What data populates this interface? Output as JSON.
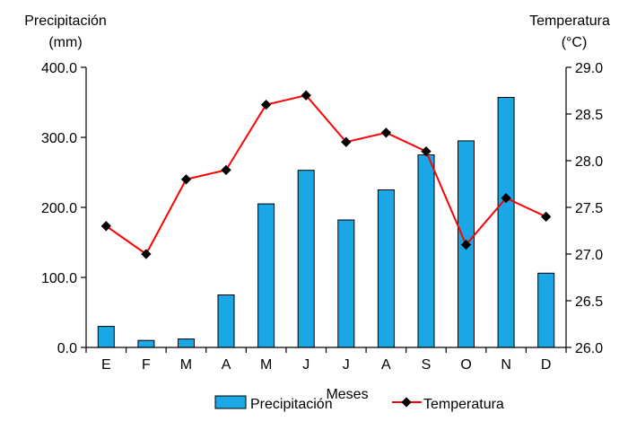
{
  "chart_data": {
    "type": "bar-line",
    "categories": [
      "E",
      "F",
      "M",
      "A",
      "M",
      "J",
      "J",
      "A",
      "S",
      "O",
      "N",
      "D"
    ],
    "xlabel": "Meses",
    "left_axis": {
      "title_line1": "Precipitación",
      "title_line2": "(mm)",
      "ylim": [
        0,
        400
      ],
      "ticks": [
        "0.0",
        "100.0",
        "200.0",
        "300.0",
        "400.0"
      ]
    },
    "right_axis": {
      "title_line1": "Temperatura",
      "title_line2": "(°C)",
      "ylim": [
        26.0,
        29.0
      ],
      "ticks": [
        "26.0",
        "26.5",
        "27.0",
        "27.5",
        "28.0",
        "28.5",
        "29.0"
      ]
    },
    "series": [
      {
        "name": "Precipitación",
        "kind": "bar",
        "axis": "left",
        "color": "#1aa7e6",
        "values": [
          30,
          10,
          12,
          75,
          205,
          253,
          182,
          225,
          275,
          295,
          357,
          106
        ]
      },
      {
        "name": "Temperatura",
        "kind": "line",
        "axis": "right",
        "color": "#ff0000",
        "marker_color": "#000000",
        "values": [
          27.3,
          27.0,
          27.8,
          27.9,
          28.6,
          28.7,
          28.2,
          28.3,
          28.1,
          27.1,
          27.6,
          27.4
        ]
      }
    ],
    "legend_position": "bottom",
    "grid": false
  }
}
